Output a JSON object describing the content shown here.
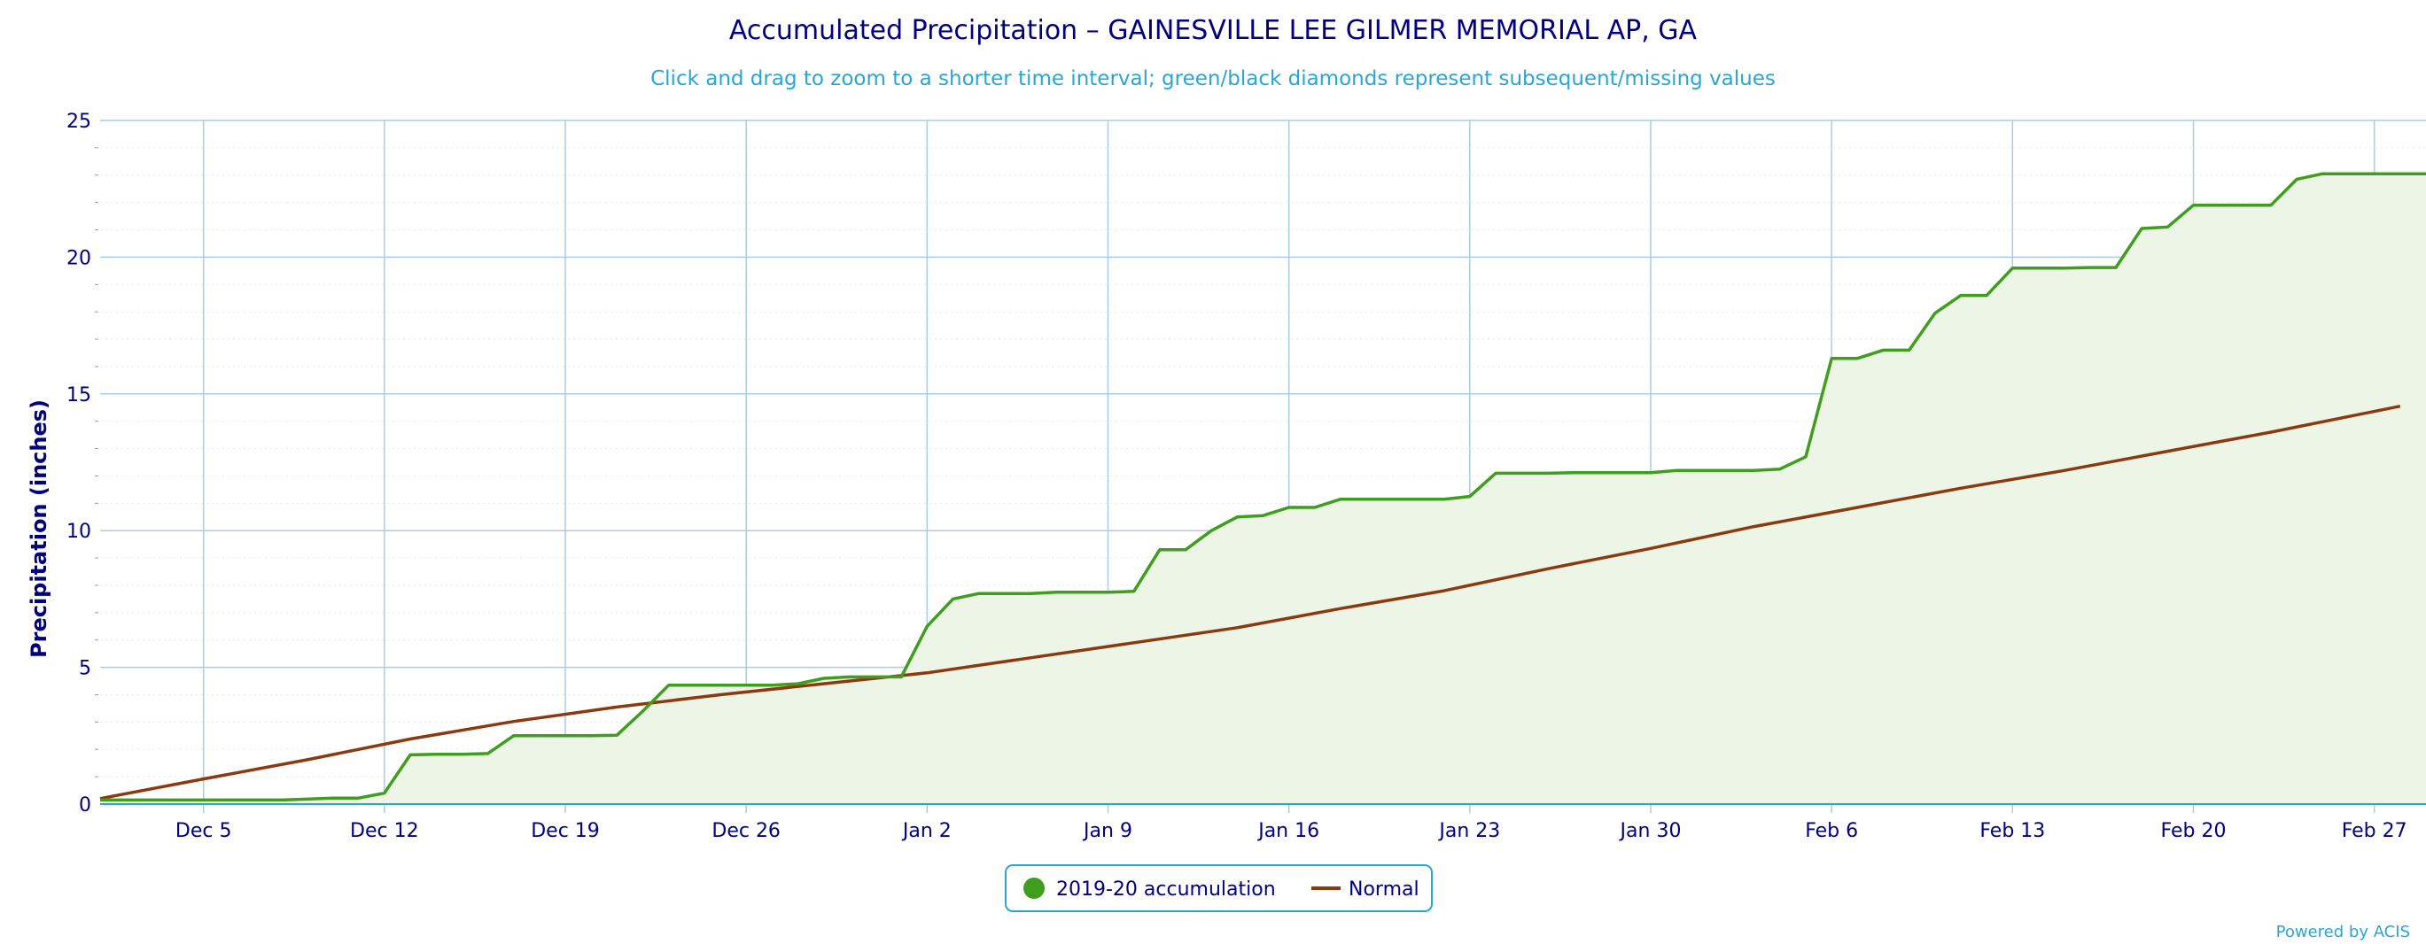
{
  "chart_data": {
    "type": "area",
    "title": "Accumulated Precipitation – GAINESVILLE LEE GILMER MEMORIAL AP, GA",
    "subtitle": "Click and drag to zoom to a shorter time interval; green/black diamonds represent subsequent/missing values",
    "ylabel": "Precipitation (inches)",
    "xlabel": "",
    "ylim": [
      0,
      25
    ],
    "yticks": [
      0,
      5,
      10,
      15,
      20,
      25
    ],
    "xlim": [
      "2019-12-01",
      "2020-02-29"
    ],
    "xtick_labels": [
      "Dec 5",
      "Dec 12",
      "Dec 19",
      "Dec 26",
      "Jan 2",
      "Jan 9",
      "Jan 16",
      "Jan 23",
      "Jan 30",
      "Feb 6",
      "Feb 13",
      "Feb 20",
      "Feb 27"
    ],
    "xtick_dates": [
      "2019-12-05",
      "2019-12-12",
      "2019-12-19",
      "2019-12-26",
      "2020-01-02",
      "2020-01-09",
      "2020-01-16",
      "2020-01-23",
      "2020-01-30",
      "2020-02-06",
      "2020-02-13",
      "2020-02-20",
      "2020-02-27"
    ],
    "grid": true,
    "legend_position": "bottom-center",
    "series": [
      {
        "name": "2019-20 accumulation",
        "color": "#3f9e1e",
        "fill": "#edf5e6",
        "x": [
          "2019-12-01",
          "2019-12-02",
          "2019-12-03",
          "2019-12-04",
          "2019-12-05",
          "2019-12-06",
          "2019-12-07",
          "2019-12-08",
          "2019-12-09",
          "2019-12-10",
          "2019-12-11",
          "2019-12-12",
          "2019-12-13",
          "2019-12-14",
          "2019-12-15",
          "2019-12-16",
          "2019-12-17",
          "2019-12-18",
          "2019-12-19",
          "2019-12-20",
          "2019-12-21",
          "2019-12-22",
          "2019-12-23",
          "2019-12-24",
          "2019-12-25",
          "2019-12-26",
          "2019-12-27",
          "2019-12-28",
          "2019-12-29",
          "2019-12-30",
          "2019-12-31",
          "2020-01-01",
          "2020-01-02",
          "2020-01-03",
          "2020-01-04",
          "2020-01-05",
          "2020-01-06",
          "2020-01-07",
          "2020-01-08",
          "2020-01-09",
          "2020-01-10",
          "2020-01-11",
          "2020-01-12",
          "2020-01-13",
          "2020-01-14",
          "2020-01-15",
          "2020-01-16",
          "2020-01-17",
          "2020-01-18",
          "2020-01-19",
          "2020-01-20",
          "2020-01-21",
          "2020-01-22",
          "2020-01-23",
          "2020-01-24",
          "2020-01-25",
          "2020-01-26",
          "2020-01-27",
          "2020-01-28",
          "2020-01-29",
          "2020-01-30",
          "2020-01-31",
          "2020-02-01",
          "2020-02-02",
          "2020-02-03",
          "2020-02-04",
          "2020-02-05",
          "2020-02-06",
          "2020-02-07",
          "2020-02-08",
          "2020-02-09",
          "2020-02-10",
          "2020-02-11",
          "2020-02-12",
          "2020-02-13",
          "2020-02-14",
          "2020-02-15",
          "2020-02-16",
          "2020-02-17",
          "2020-02-18",
          "2020-02-19",
          "2020-02-20",
          "2020-02-21",
          "2020-02-22",
          "2020-02-23",
          "2020-02-24",
          "2020-02-25",
          "2020-02-26",
          "2020-02-27",
          "2020-02-28",
          "2020-02-29"
        ],
        "values": [
          0.15,
          0.15,
          0.15,
          0.15,
          0.15,
          0.15,
          0.15,
          0.15,
          0.18,
          0.22,
          0.22,
          0.4,
          1.8,
          1.82,
          1.82,
          1.85,
          2.5,
          2.5,
          2.5,
          2.5,
          2.52,
          3.4,
          4.35,
          4.35,
          4.35,
          4.35,
          4.35,
          4.4,
          4.6,
          4.65,
          4.65,
          4.65,
          6.5,
          7.5,
          7.7,
          7.7,
          7.7,
          7.75,
          7.75,
          7.75,
          7.78,
          9.3,
          9.3,
          10.0,
          10.5,
          10.55,
          10.85,
          10.85,
          11.15,
          11.15,
          11.15,
          11.15,
          11.15,
          11.25,
          12.1,
          12.1,
          12.1,
          12.12,
          12.12,
          12.12,
          12.12,
          12.2,
          12.2,
          12.2,
          12.2,
          12.25,
          12.7,
          16.3,
          16.3,
          16.6,
          16.6,
          17.95,
          18.6,
          18.6,
          19.6,
          19.6,
          19.6,
          19.62,
          19.62,
          21.05,
          21.1,
          21.9,
          21.9,
          21.9,
          21.9,
          22.85,
          23.05,
          23.05,
          23.05,
          23.05,
          23.05
        ]
      },
      {
        "name": "Normal",
        "color": "#8b3a0f",
        "x": [
          "2019-12-01",
          "2019-12-05",
          "2019-12-09",
          "2019-12-13",
          "2019-12-17",
          "2019-12-21",
          "2019-12-25",
          "2019-12-29",
          "2020-01-02",
          "2020-01-06",
          "2020-01-10",
          "2020-01-14",
          "2020-01-18",
          "2020-01-22",
          "2020-01-26",
          "2020-01-30",
          "2020-02-03",
          "2020-02-07",
          "2020-02-11",
          "2020-02-15",
          "2020-02-19",
          "2020-02-23",
          "2020-02-28"
        ],
        "values": [
          0.2,
          0.92,
          1.62,
          2.38,
          3.02,
          3.55,
          4.0,
          4.4,
          4.8,
          5.35,
          5.9,
          6.45,
          7.15,
          7.8,
          8.6,
          9.35,
          10.15,
          10.85,
          11.55,
          12.2,
          12.9,
          13.6,
          14.55
        ]
      }
    ],
    "credit": "Powered by ACIS"
  }
}
